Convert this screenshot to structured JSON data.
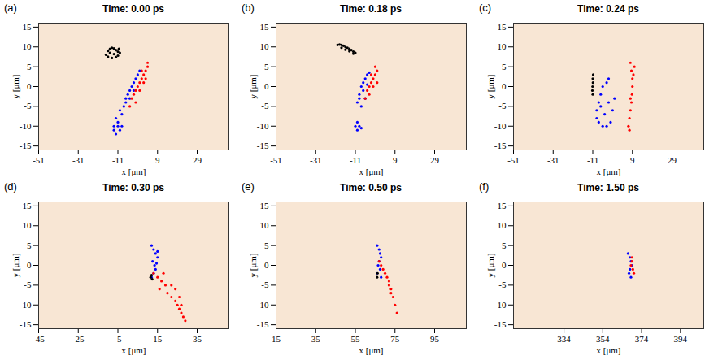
{
  "chart_data": [
    {
      "type": "scatter",
      "panel": "(a)",
      "title": "Time: 0.00 ps",
      "x_label": "x [μm]",
      "y_label": "y [μm]",
      "xlim": [
        -51,
        45
      ],
      "ylim": [
        -16,
        16
      ],
      "xticks": [
        -51,
        -31,
        -11,
        9,
        29
      ],
      "yticks": [
        -15,
        -10,
        -5,
        0,
        5,
        10,
        15
      ],
      "series": [
        {
          "color": "#000000",
          "marker": "circle",
          "x": [
            -17,
            -16,
            -15,
            -14,
            -13,
            -12,
            -11,
            -10,
            -16,
            -14,
            -12,
            -10.5,
            -15,
            -13,
            -11
          ],
          "y": [
            8,
            9,
            9.5,
            9.8,
            9.6,
            9.2,
            8.8,
            8.5,
            7.5,
            7.2,
            7.4,
            9.5,
            8.5,
            8.2,
            7.8
          ]
        },
        {
          "color": "#0000ff",
          "marker": "circle",
          "x": [
            -12,
            -10,
            -8,
            -7,
            -6,
            -5,
            -4,
            -3,
            -2,
            -1,
            0,
            -9,
            -7,
            -5,
            -3,
            -11,
            -13,
            -12,
            -10,
            -11,
            -13,
            -9
          ],
          "y": [
            -8,
            -6,
            -5,
            -3,
            -2,
            -1,
            0,
            1,
            2,
            3,
            4,
            -7,
            -4,
            -3,
            -1,
            -10,
            -10,
            -12,
            -11,
            -9,
            -11,
            -10
          ]
        },
        {
          "color": "#ff0000",
          "marker": "circle",
          "x": [
            -5,
            -4,
            -3,
            -2,
            -1,
            0,
            1,
            2,
            3,
            4,
            -2,
            0,
            2,
            4,
            1,
            3
          ],
          "y": [
            -5,
            -3,
            -2,
            -1,
            0,
            1,
            2,
            3,
            4,
            5,
            -4,
            -1,
            1,
            6,
            4,
            2
          ]
        }
      ]
    },
    {
      "type": "scatter",
      "panel": "(b)",
      "title": "Time: 0.18 ps",
      "x_label": "x [μm]",
      "y_label": "y [μm]",
      "xlim": [
        -51,
        45
      ],
      "ylim": [
        -16,
        16
      ],
      "xticks": [
        -51,
        -31,
        -11,
        9,
        29
      ],
      "yticks": [
        -15,
        -10,
        -5,
        0,
        5,
        10,
        15
      ],
      "series": [
        {
          "color": "#000000",
          "marker": "circle",
          "x": [
            -20,
            -19,
            -18,
            -17,
            -16,
            -15,
            -14,
            -13,
            -12,
            -11,
            -18,
            -16,
            -14,
            -12
          ],
          "y": [
            10.5,
            10.6,
            10.5,
            10.3,
            10,
            9.8,
            9.5,
            9.2,
            8.8,
            8.5,
            9.8,
            9.3,
            8.9,
            8.3
          ]
        },
        {
          "color": "#0000ff",
          "marker": "circle",
          "x": [
            -10,
            -9,
            -8,
            -7,
            -6,
            -5,
            -4,
            -9,
            -7,
            -5,
            -8,
            -6,
            -10,
            -9,
            -11,
            -10,
            -8
          ],
          "y": [
            -4,
            -2,
            0,
            1,
            2,
            3,
            3.5,
            -3,
            -1,
            0.5,
            -5,
            -3,
            -9,
            -10,
            -10,
            -11,
            -10.5
          ]
        },
        {
          "color": "#ff0000",
          "marker": "circle",
          "x": [
            -6,
            -5,
            -4,
            -3,
            -2,
            -1,
            0,
            -4,
            -2,
            -1,
            -3,
            0
          ],
          "y": [
            -3,
            -1,
            0,
            1,
            2,
            3,
            4,
            -2,
            0,
            5,
            3,
            1
          ]
        }
      ]
    },
    {
      "type": "scatter",
      "panel": "(c)",
      "title": "Time: 0.24 ps",
      "x_label": "x [μm]",
      "y_label": "y [μm]",
      "xlim": [
        -51,
        45
      ],
      "ylim": [
        -16,
        16
      ],
      "xticks": [
        -51,
        -31,
        -11,
        9,
        29
      ],
      "yticks": [
        -15,
        -10,
        -5,
        0,
        5,
        10,
        15
      ],
      "series": [
        {
          "color": "#000000",
          "marker": "circle",
          "x": [
            -11,
            -11.2,
            -11.1,
            -10.9,
            -11,
            -10.8
          ],
          "y": [
            -2,
            -1,
            0,
            1,
            2,
            3
          ]
        },
        {
          "color": "#0000ff",
          "marker": "circle",
          "x": [
            -3,
            -4,
            -6,
            -7,
            -8,
            -9,
            -9,
            -8,
            -6,
            -4,
            -2,
            -5,
            -7,
            -3,
            -1,
            0
          ],
          "y": [
            2,
            1,
            0,
            -2,
            -4,
            -6,
            -8,
            -9,
            -10,
            -10,
            -9,
            -7,
            -5,
            -4,
            -6,
            -3
          ]
        },
        {
          "color": "#ff0000",
          "marker": "circle",
          "x": [
            8,
            8.5,
            9,
            9,
            8.8,
            8.5,
            8,
            7.5,
            7,
            7.5,
            9.5,
            10,
            8
          ],
          "y": [
            6,
            4,
            2,
            0,
            -2,
            -4,
            -6,
            -8,
            -10,
            -11,
            3,
            5,
            -3
          ]
        }
      ]
    },
    {
      "type": "scatter",
      "panel": "(d)",
      "title": "Time: 0.30 ps",
      "x_label": "x [μm]",
      "y_label": "y [μm]",
      "xlim": [
        -45,
        51
      ],
      "ylim": [
        -16,
        16
      ],
      "xticks": [
        -45,
        -25,
        -5,
        15,
        35
      ],
      "yticks": [
        -15,
        -10,
        -5,
        0,
        5,
        10,
        15
      ],
      "series": [
        {
          "color": "#0000ff",
          "marker": "circle",
          "x": [
            12,
            13,
            14,
            15,
            12.5,
            13.5,
            14,
            13,
            12,
            15,
            14.5
          ],
          "y": [
            5,
            4,
            3,
            2,
            1,
            0,
            -1,
            -2,
            -3,
            3.5,
            0.5
          ]
        },
        {
          "color": "#000000",
          "marker": "circle",
          "x": [
            11.5,
            12,
            12.3
          ],
          "y": [
            -3,
            -2.5,
            -3.5
          ]
        },
        {
          "color": "#ff0000",
          "marker": "circle",
          "x": [
            13,
            15,
            17,
            19,
            20,
            22,
            24,
            25,
            26,
            27,
            28,
            29,
            22,
            24,
            26,
            27,
            18,
            16
          ],
          "y": [
            -2,
            -3,
            -4,
            -5,
            -7,
            -8,
            -9,
            -10,
            -11,
            -12,
            -13,
            -14,
            -5,
            -6,
            -8,
            -10,
            -2,
            -6
          ]
        }
      ]
    },
    {
      "type": "scatter",
      "panel": "(e)",
      "title": "Time: 0.50 ps",
      "x_label": "x [μm]",
      "y_label": "y [μm]",
      "xlim": [
        15,
        111
      ],
      "ylim": [
        -16,
        16
      ],
      "xticks": [
        15,
        35,
        55,
        75,
        95
      ],
      "yticks": [
        -15,
        -10,
        -5,
        0,
        5,
        10,
        15
      ],
      "series": [
        {
          "color": "#0000ff",
          "marker": "circle",
          "x": [
            66,
            67,
            67.5,
            68,
            67,
            66.5,
            67.5,
            66,
            68
          ],
          "y": [
            5,
            4,
            3,
            2,
            1,
            0,
            -1,
            -2,
            -3
          ]
        },
        {
          "color": "#000000",
          "marker": "circle",
          "x": [
            66,
            66.2
          ],
          "y": [
            -3,
            -2
          ]
        },
        {
          "color": "#ff0000",
          "marker": "circle",
          "x": [
            67,
            68,
            69,
            70,
            71,
            72,
            73,
            74,
            75,
            72,
            73,
            76
          ],
          "y": [
            1,
            0,
            -1,
            -2,
            -3,
            -5,
            -6,
            -8,
            -10,
            -4,
            -7,
            -12
          ]
        }
      ]
    },
    {
      "type": "scatter",
      "panel": "(f)",
      "title": "Time: 1.50 ps",
      "x_label": "x [μm]",
      "y_label": "y [μm]",
      "xlim": [
        308,
        406
      ],
      "ylim": [
        -16,
        16
      ],
      "xticks": [
        334,
        354,
        374,
        394
      ],
      "yticks": [
        -15,
        -10,
        -5,
        0,
        5,
        10,
        15
      ],
      "series": [
        {
          "color": "#0000ff",
          "marker": "circle",
          "x": [
            367,
            368,
            368.5,
            369,
            368,
            367.5,
            368.5
          ],
          "y": [
            3,
            2,
            1,
            0,
            -1,
            -2,
            -3
          ]
        },
        {
          "color": "#ff0000",
          "marker": "circle",
          "x": [
            369,
            369.5,
            370,
            368.5,
            369
          ],
          "y": [
            1,
            -1,
            -2,
            0,
            2
          ]
        }
      ]
    }
  ]
}
